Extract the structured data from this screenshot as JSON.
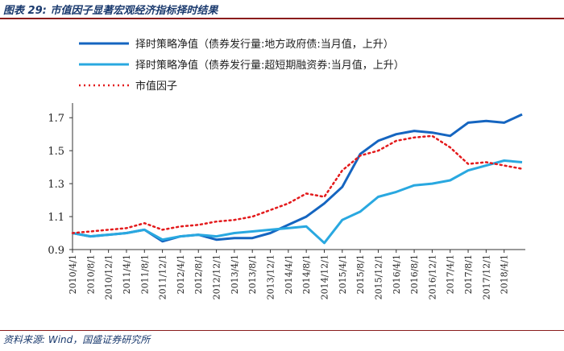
{
  "figure": {
    "title": "图表 29:  市值因子显著宏观经济指标择时结果",
    "source": "资料来源:  Wind，国盛证券研究所"
  },
  "colors": {
    "header": "#1a3a6e",
    "rule": "#8a1c1c",
    "series": [
      "#1565c0",
      "#29a8e0",
      "#e31a1c"
    ]
  },
  "chart_data": {
    "type": "line",
    "yticks": [
      0.9,
      1.1,
      1.3,
      1.5,
      1.7
    ],
    "ylim": [
      0.9,
      1.75
    ],
    "x": [
      "2010/4/1",
      "2010/8/1",
      "2010/12/1",
      "2011/4/1",
      "2011/8/1",
      "2011/12/1",
      "2012/4/1",
      "2012/8/1",
      "2012/12/1",
      "2013/4/1",
      "2013/8/1",
      "2013/12/1",
      "2014/4/1",
      "2014/8/1",
      "2014/12/1",
      "2015/4/1",
      "2015/8/1",
      "2015/12/1",
      "2016/4/1",
      "2016/8/1",
      "2016/12/1",
      "2017/4/1",
      "2017/8/1",
      "2017/12/1",
      "2018/4/1",
      "2018/6/1"
    ],
    "xticks": [
      "2010/4/1",
      "2010/8/1",
      "2010/12/1",
      "2011/4/1",
      "2011/8/1",
      "2011/12/1",
      "2012/4/1",
      "2012/8/1",
      "2012/12/1",
      "2013/4/1",
      "2013/8/1",
      "2013/12/1",
      "2014/4/1",
      "2014/8/1",
      "2014/12/1",
      "2015/4/1",
      "2015/8/1",
      "2015/12/1",
      "2016/4/1",
      "2016/8/1",
      "2016/12/1",
      "2017/4/1",
      "2017/8/1",
      "2017/12/1",
      "2018/4/1"
    ],
    "legend_position": "top-left",
    "grid": false,
    "series": [
      {
        "name": "择时策略净值（债券发行量:地方政府债:当月值，上升）",
        "style": "solid",
        "values": [
          1.0,
          0.98,
          0.99,
          1.0,
          1.02,
          0.95,
          0.98,
          0.99,
          0.96,
          0.97,
          0.97,
          1.0,
          1.05,
          1.1,
          1.18,
          1.28,
          1.48,
          1.56,
          1.6,
          1.62,
          1.61,
          1.59,
          1.67,
          1.68,
          1.67,
          1.72
        ]
      },
      {
        "name": "择时策略净值（债券发行量:超短期融资券:当月值，上升）",
        "style": "solid",
        "values": [
          1.0,
          0.98,
          0.99,
          1.0,
          1.02,
          0.96,
          0.98,
          0.99,
          0.98,
          1.0,
          1.01,
          1.02,
          1.03,
          1.04,
          0.94,
          1.08,
          1.13,
          1.22,
          1.25,
          1.29,
          1.3,
          1.32,
          1.38,
          1.41,
          1.44,
          1.43
        ]
      },
      {
        "name": "市值因子",
        "style": "dotted",
        "values": [
          1.0,
          1.01,
          1.02,
          1.03,
          1.06,
          1.02,
          1.04,
          1.05,
          1.07,
          1.08,
          1.1,
          1.14,
          1.18,
          1.24,
          1.22,
          1.38,
          1.47,
          1.5,
          1.56,
          1.58,
          1.59,
          1.52,
          1.42,
          1.43,
          1.41,
          1.39
        ]
      }
    ]
  }
}
